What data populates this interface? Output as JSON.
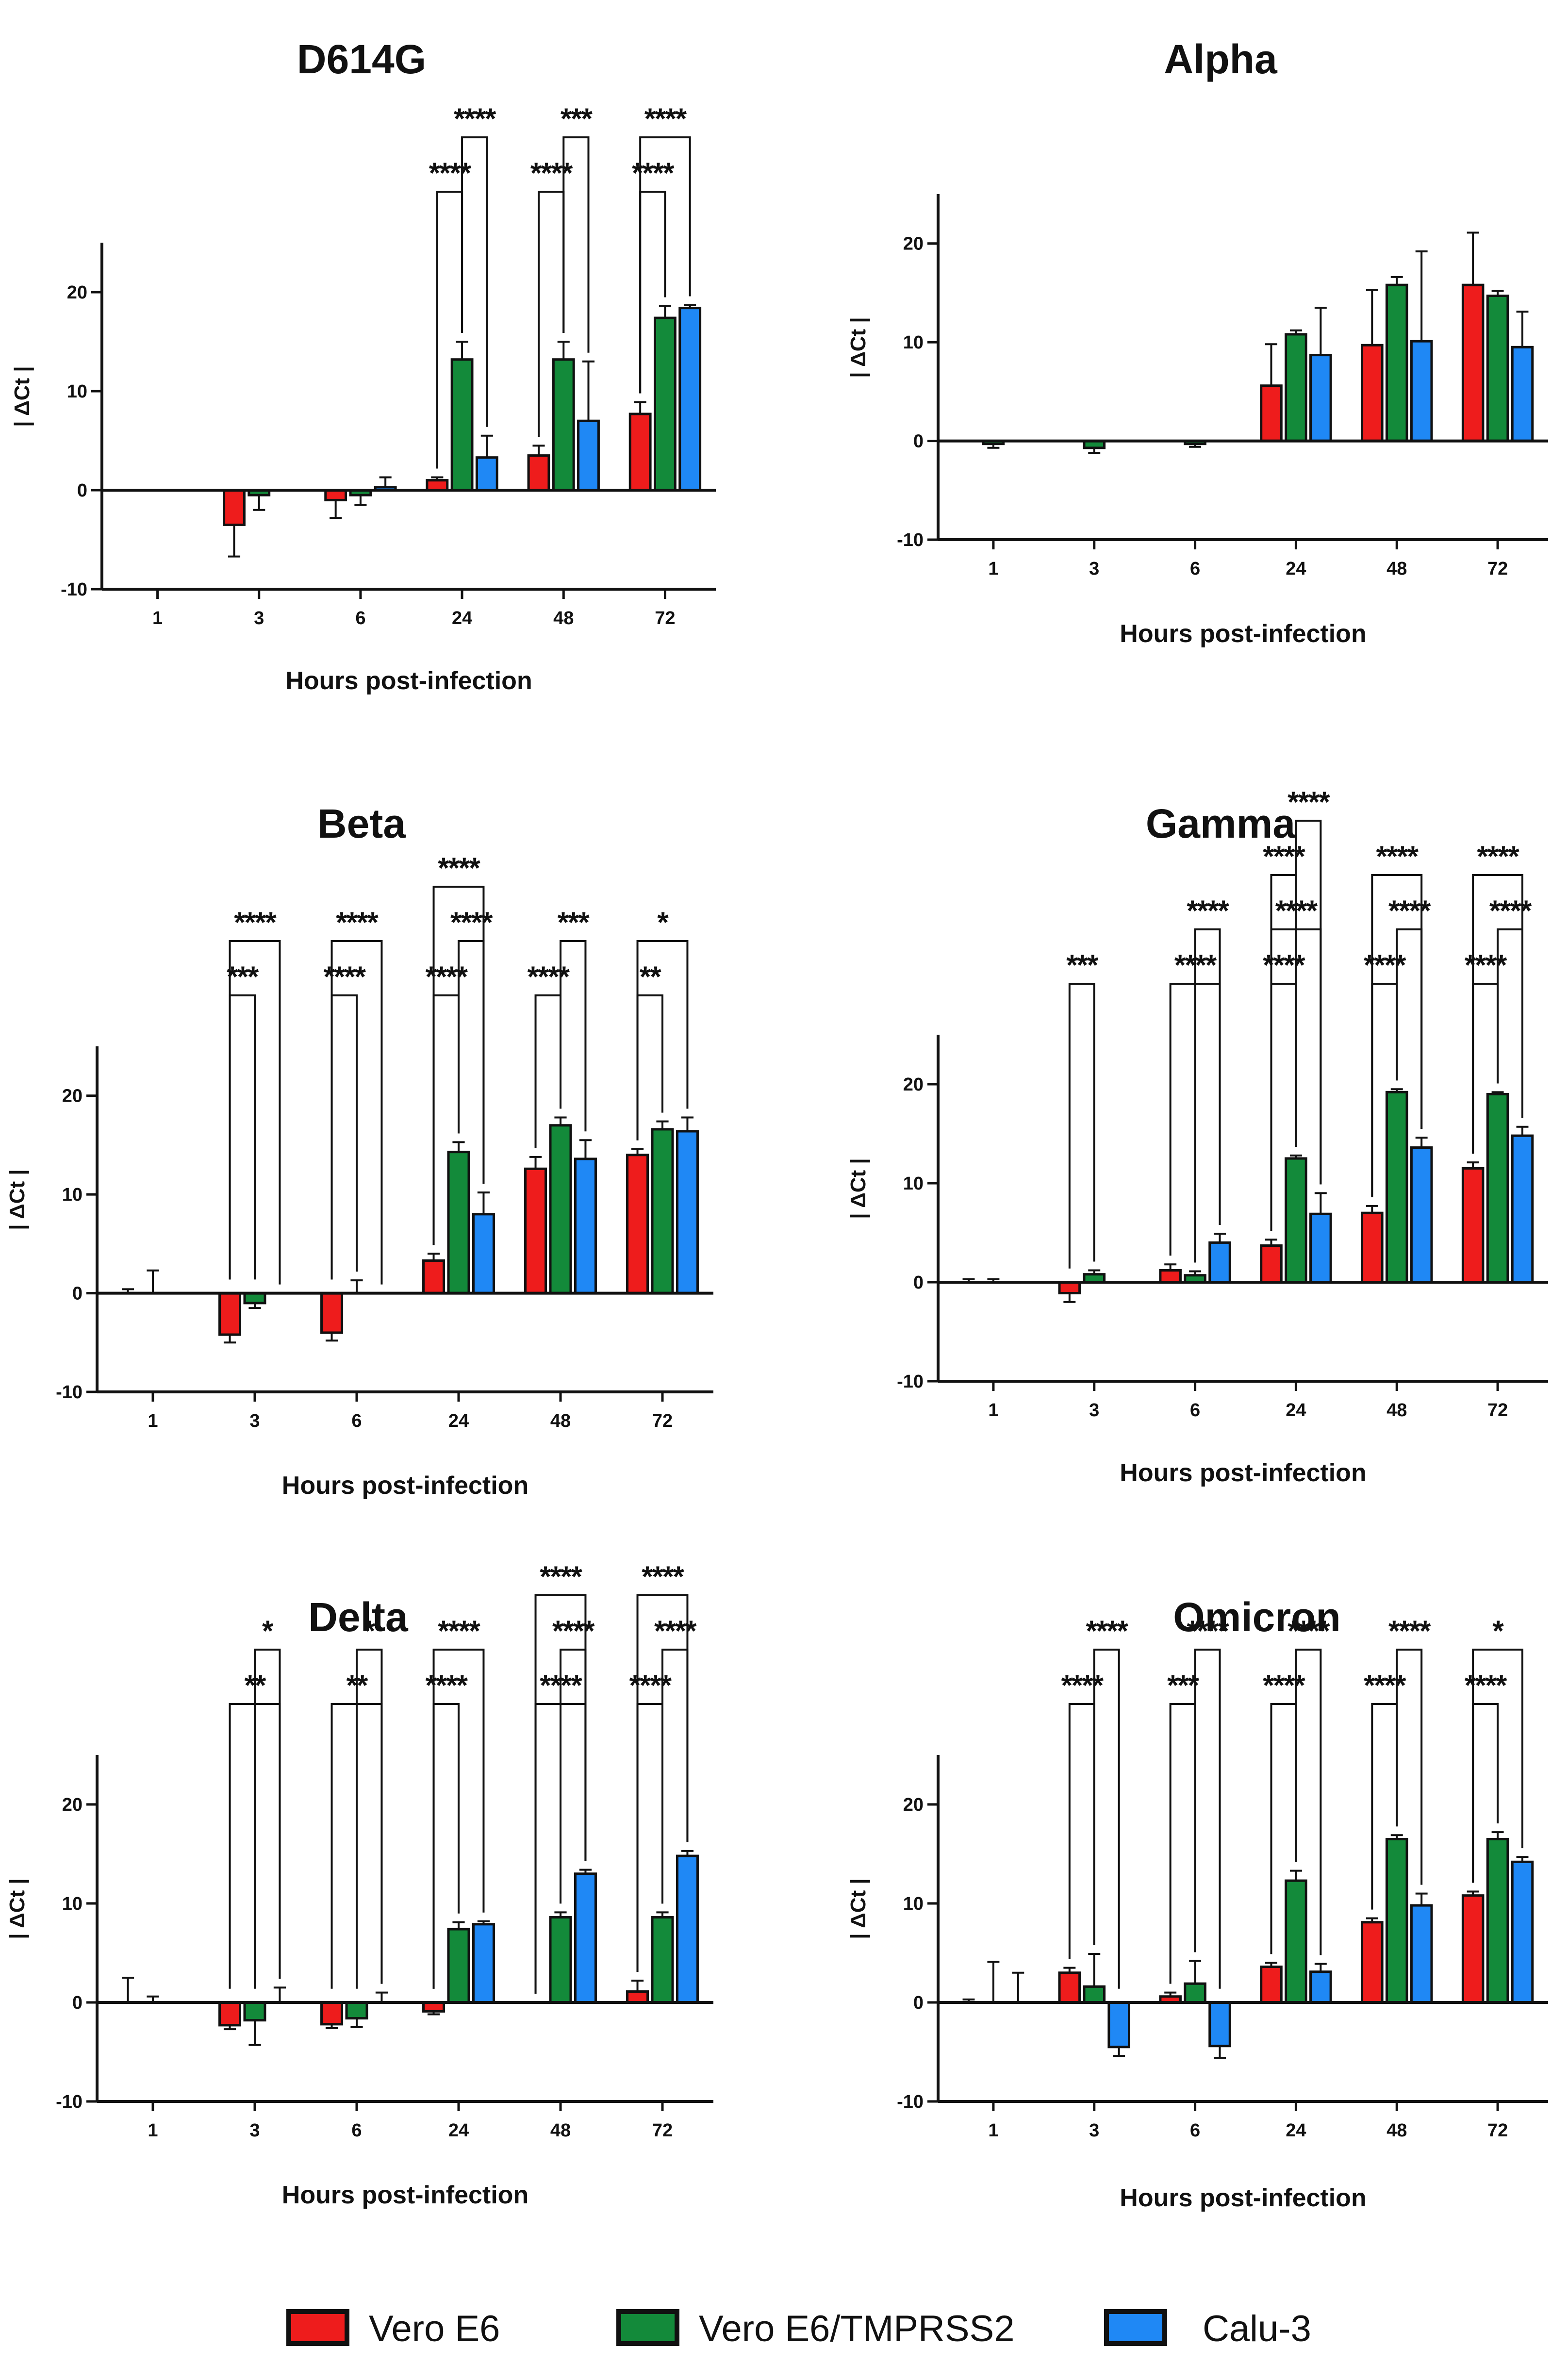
{
  "colors": {
    "vero_e6": "#ee1c1c",
    "vero_e6_tmprss2": "#138a3a",
    "calu3": "#1f88f5",
    "axis": "#111111"
  },
  "legend": [
    {
      "label": "Vero E6",
      "color_key": "vero_e6"
    },
    {
      "label": "Vero E6/TMPRSS2",
      "color_key": "vero_e6_tmprss2"
    },
    {
      "label": "Calu-3",
      "color_key": "calu3"
    }
  ],
  "chart_data": [
    {
      "type": "bar",
      "title": "D614G",
      "xlabel": "Hours post-infection",
      "ylabel": "| ΔCt |",
      "ylim": [
        -10,
        25
      ],
      "yticks": [
        "-10",
        "0",
        "10",
        "20"
      ],
      "categories": [
        "1",
        "3",
        "6",
        "24",
        "48",
        "72"
      ],
      "series": [
        {
          "name": "Vero E6",
          "values": [
            0,
            -3.5,
            -1,
            1,
            3.5,
            7.7
          ],
          "errors": [
            0,
            3.2,
            1.8,
            0.3,
            1.0,
            1.2
          ]
        },
        {
          "name": "Vero E6/TMPRSS2",
          "values": [
            0,
            -0.5,
            -0.5,
            13.2,
            13.2,
            17.4
          ],
          "errors": [
            0,
            1.5,
            1.0,
            1.8,
            1.8,
            1.2
          ]
        },
        {
          "name": "Calu-3",
          "values": [
            0,
            0,
            0.3,
            3.3,
            7,
            18.4
          ],
          "errors": [
            0,
            0,
            1.0,
            2.2,
            6.0,
            0.3
          ]
        }
      ],
      "significance": [
        {
          "group": "24",
          "from": "Vero E6",
          "to": "Vero E6/TMPRSS2",
          "label": "****"
        },
        {
          "group": "24",
          "from": "Vero E6/TMPRSS2",
          "to": "Calu-3",
          "label": "****"
        },
        {
          "group": "48",
          "from": "Vero E6",
          "to": "Vero E6/TMPRSS2",
          "label": "****"
        },
        {
          "group": "48",
          "from": "Vero E6/TMPRSS2",
          "to": "Calu-3",
          "label": "***"
        },
        {
          "group": "72",
          "from": "Vero E6",
          "to": "Vero E6/TMPRSS2",
          "label": "****"
        },
        {
          "group": "72",
          "from": "Vero E6",
          "to": "Calu-3",
          "label": "****"
        }
      ]
    },
    {
      "type": "bar",
      "title": "Alpha",
      "xlabel": "Hours post-infection",
      "ylabel": "| ΔCt |",
      "ylim": [
        -10,
        25
      ],
      "yticks": [
        "-10",
        "0",
        "10",
        "20"
      ],
      "categories": [
        "1",
        "3",
        "6",
        "24",
        "48",
        "72"
      ],
      "series": [
        {
          "name": "Vero E6",
          "values": [
            0,
            0,
            0,
            5.6,
            9.7,
            15.8
          ],
          "errors": [
            0,
            0,
            0,
            4.2,
            5.6,
            5.3
          ]
        },
        {
          "name": "Vero E6/TMPRSS2",
          "values": [
            -0.3,
            -0.7,
            -0.3,
            10.8,
            15.8,
            14.7
          ],
          "errors": [
            0.4,
            0.5,
            0.3,
            0.4,
            0.8,
            0.5
          ]
        },
        {
          "name": "Calu-3",
          "values": [
            0,
            0,
            0,
            8.7,
            10.1,
            9.5
          ],
          "errors": [
            0,
            0,
            0,
            4.8,
            9.1,
            3.6
          ]
        }
      ],
      "significance": []
    },
    {
      "type": "bar",
      "title": "Beta",
      "xlabel": "Hours post-infection",
      "ylabel": "| ΔCt |",
      "ylim": [
        -10,
        25
      ],
      "yticks": [
        "-10",
        "0",
        "10",
        "20"
      ],
      "categories": [
        "1",
        "3",
        "6",
        "24",
        "48",
        "72"
      ],
      "series": [
        {
          "name": "Vero E6",
          "values": [
            0,
            -4.2,
            -4.0,
            3.3,
            12.6,
            14.0
          ],
          "errors": [
            0.4,
            0.8,
            0.8,
            0.7,
            1.2,
            0.6
          ]
        },
        {
          "name": "Vero E6/TMPRSS2",
          "values": [
            0,
            -1.0,
            0,
            14.3,
            17.0,
            16.6
          ],
          "errors": [
            2.3,
            0.5,
            1.3,
            1.0,
            0.8,
            0.8
          ]
        },
        {
          "name": "Calu-3",
          "values": [
            0,
            0,
            0,
            8.0,
            13.6,
            16.4
          ],
          "errors": [
            0,
            0,
            0,
            2.2,
            1.9,
            1.4
          ]
        }
      ],
      "significance": [
        {
          "group": "3",
          "from": "Vero E6",
          "to": "Vero E6/TMPRSS2",
          "label": "***"
        },
        {
          "group": "3",
          "from": "Vero E6",
          "to": "Calu-3",
          "label": "****"
        },
        {
          "group": "6",
          "from": "Vero E6",
          "to": "Vero E6/TMPRSS2",
          "label": "****"
        },
        {
          "group": "6",
          "from": "Vero E6",
          "to": "Calu-3",
          "label": "****"
        },
        {
          "group": "24",
          "from": "Vero E6",
          "to": "Vero E6/TMPRSS2",
          "label": "****"
        },
        {
          "group": "24",
          "from": "Vero E6/TMPRSS2",
          "to": "Calu-3",
          "label": "****"
        },
        {
          "group": "24",
          "from": "Vero E6",
          "to": "Calu-3",
          "label": "****"
        },
        {
          "group": "48",
          "from": "Vero E6",
          "to": "Vero E6/TMPRSS2",
          "label": "****"
        },
        {
          "group": "48",
          "from": "Vero E6/TMPRSS2",
          "to": "Calu-3",
          "label": "***"
        },
        {
          "group": "72",
          "from": "Vero E6",
          "to": "Vero E6/TMPRSS2",
          "label": "**"
        },
        {
          "group": "72",
          "from": "Vero E6",
          "to": "Calu-3",
          "label": "*"
        }
      ]
    },
    {
      "type": "bar",
      "title": "Gamma",
      "xlabel": "Hours post-infection",
      "ylabel": "| ΔCt |",
      "ylim": [
        -10,
        25
      ],
      "yticks": [
        "-10",
        "0",
        "10",
        "20"
      ],
      "categories": [
        "1",
        "3",
        "6",
        "24",
        "48",
        "72"
      ],
      "series": [
        {
          "name": "Vero E6",
          "values": [
            0,
            -1.1,
            1.2,
            3.7,
            7.0,
            11.5
          ],
          "errors": [
            0.3,
            0.9,
            0.6,
            0.6,
            0.7,
            0.6
          ]
        },
        {
          "name": "Vero E6/TMPRSS2",
          "values": [
            0,
            0.8,
            0.7,
            12.5,
            19.2,
            19.0
          ],
          "errors": [
            0.3,
            0.4,
            0.4,
            0.3,
            0.3,
            0.2
          ]
        },
        {
          "name": "Calu-3",
          "values": [
            0,
            0,
            4.0,
            6.9,
            13.6,
            14.8
          ],
          "errors": [
            0,
            0,
            0.9,
            2.1,
            1.0,
            0.9
          ]
        }
      ],
      "significance": [
        {
          "group": "3",
          "from": "Vero E6",
          "to": "Vero E6/TMPRSS2",
          "label": "***"
        },
        {
          "group": "6",
          "from": "Vero E6",
          "to": "Calu-3",
          "label": "****"
        },
        {
          "group": "6",
          "from": "Vero E6/TMPRSS2",
          "to": "Calu-3",
          "label": "****"
        },
        {
          "group": "24",
          "from": "Vero E6",
          "to": "Vero E6/TMPRSS2",
          "label": "****"
        },
        {
          "group": "24",
          "from": "Vero E6",
          "to": "Calu-3",
          "label": "****"
        },
        {
          "group": "24",
          "from": "Vero E6",
          "to": "Vero E6/TMPRSS2",
          "label": "****"
        },
        {
          "group": "24",
          "from": "Vero E6/TMPRSS2",
          "to": "Calu-3",
          "label": "****"
        },
        {
          "group": "48",
          "from": "Vero E6",
          "to": "Vero E6/TMPRSS2",
          "label": "****"
        },
        {
          "group": "48",
          "from": "Vero E6/TMPRSS2",
          "to": "Calu-3",
          "label": "****"
        },
        {
          "group": "48",
          "from": "Vero E6",
          "to": "Calu-3",
          "label": "****"
        },
        {
          "group": "72",
          "from": "Vero E6",
          "to": "Vero E6/TMPRSS2",
          "label": "****"
        },
        {
          "group": "72",
          "from": "Vero E6/TMPRSS2",
          "to": "Calu-3",
          "label": "****"
        },
        {
          "group": "72",
          "from": "Vero E6",
          "to": "Calu-3",
          "label": "****"
        }
      ]
    },
    {
      "type": "bar",
      "title": "Delta",
      "xlabel": "Hours post-infection",
      "ylabel": "| ΔCt |",
      "ylim": [
        -10,
        25
      ],
      "yticks": [
        "-10",
        "0",
        "10",
        "20"
      ],
      "categories": [
        "1",
        "3",
        "6",
        "24",
        "48",
        "72"
      ],
      "series": [
        {
          "name": "Vero E6",
          "values": [
            0,
            -2.3,
            -2.2,
            -0.9,
            0,
            1.1
          ],
          "errors": [
            2.5,
            0.4,
            0.4,
            0.3,
            0,
            1.1
          ]
        },
        {
          "name": "Vero E6/TMPRSS2",
          "values": [
            0,
            -1.8,
            -1.6,
            7.4,
            8.6,
            8.6
          ],
          "errors": [
            0.6,
            2.5,
            0.9,
            0.7,
            0.5,
            0.5
          ]
        },
        {
          "name": "Calu-3",
          "values": [
            0,
            0,
            0,
            7.9,
            13.0,
            14.8
          ],
          "errors": [
            0,
            1.5,
            1.0,
            0.3,
            0.4,
            0.5
          ]
        }
      ],
      "significance": [
        {
          "group": "3",
          "from": "Vero E6",
          "to": "Calu-3",
          "label": "**"
        },
        {
          "group": "3",
          "from": "Vero E6/TMPRSS2",
          "to": "Calu-3",
          "label": "*"
        },
        {
          "group": "6",
          "from": "Vero E6",
          "to": "Calu-3",
          "label": "**"
        },
        {
          "group": "6",
          "from": "Vero E6/TMPRSS2",
          "to": "Calu-3",
          "label": "*"
        },
        {
          "group": "24",
          "from": "Vero E6",
          "to": "Vero E6/TMPRSS2",
          "label": "****"
        },
        {
          "group": "24",
          "from": "Vero E6",
          "to": "Calu-3",
          "label": "****"
        },
        {
          "group": "48",
          "from": "Vero E6",
          "to": "Calu-3",
          "label": "****"
        },
        {
          "group": "48",
          "from": "Vero E6/TMPRSS2",
          "to": "Calu-3",
          "label": "****"
        },
        {
          "group": "48",
          "from": "Vero E6",
          "to": "Calu-3",
          "label": "****"
        },
        {
          "group": "72",
          "from": "Vero E6",
          "to": "Vero E6/TMPRSS2",
          "label": "****"
        },
        {
          "group": "72",
          "from": "Vero E6/TMPRSS2",
          "to": "Calu-3",
          "label": "****"
        },
        {
          "group": "72",
          "from": "Vero E6",
          "to": "Calu-3",
          "label": "****"
        }
      ]
    },
    {
      "type": "bar",
      "title": "Omicron",
      "xlabel": "Hours post-infection",
      "ylabel": "| ΔCt |",
      "ylim": [
        -10,
        25
      ],
      "yticks": [
        "-10",
        "0",
        "10",
        "20"
      ],
      "categories": [
        "1",
        "3",
        "6",
        "24",
        "48",
        "72"
      ],
      "series": [
        {
          "name": "Vero E6",
          "values": [
            0,
            3.0,
            0.6,
            3.6,
            8.1,
            10.8
          ],
          "errors": [
            0.3,
            0.5,
            0.4,
            0.4,
            0.4,
            0.4
          ]
        },
        {
          "name": "Vero E6/TMPRSS2",
          "values": [
            0,
            1.6,
            1.9,
            12.3,
            16.5,
            16.5
          ],
          "errors": [
            4.1,
            3.3,
            2.3,
            1.0,
            0.4,
            0.7
          ]
        },
        {
          "name": "Calu-3",
          "values": [
            0,
            -4.5,
            -4.4,
            3.1,
            9.8,
            14.2
          ],
          "errors": [
            3.0,
            0.9,
            1.2,
            0.8,
            1.2,
            0.5
          ]
        }
      ],
      "significance": [
        {
          "group": "3",
          "from": "Vero E6",
          "to": "Vero E6/TMPRSS2",
          "label": "****"
        },
        {
          "group": "3",
          "from": "Vero E6/TMPRSS2",
          "to": "Calu-3",
          "label": "****"
        },
        {
          "group": "6",
          "from": "Vero E6",
          "to": "Vero E6/TMPRSS2",
          "label": "***"
        },
        {
          "group": "6",
          "from": "Vero E6/TMPRSS2",
          "to": "Calu-3",
          "label": "****"
        },
        {
          "group": "24",
          "from": "Vero E6",
          "to": "Vero E6/TMPRSS2",
          "label": "****"
        },
        {
          "group": "24",
          "from": "Vero E6/TMPRSS2",
          "to": "Calu-3",
          "label": "****"
        },
        {
          "group": "48",
          "from": "Vero E6",
          "to": "Vero E6/TMPRSS2",
          "label": "****"
        },
        {
          "group": "48",
          "from": "Vero E6/TMPRSS2",
          "to": "Calu-3",
          "label": "****"
        },
        {
          "group": "72",
          "from": "Vero E6",
          "to": "Vero E6/TMPRSS2",
          "label": "****"
        },
        {
          "group": "72",
          "from": "Vero E6",
          "to": "Calu-3",
          "label": "*"
        }
      ]
    }
  ]
}
